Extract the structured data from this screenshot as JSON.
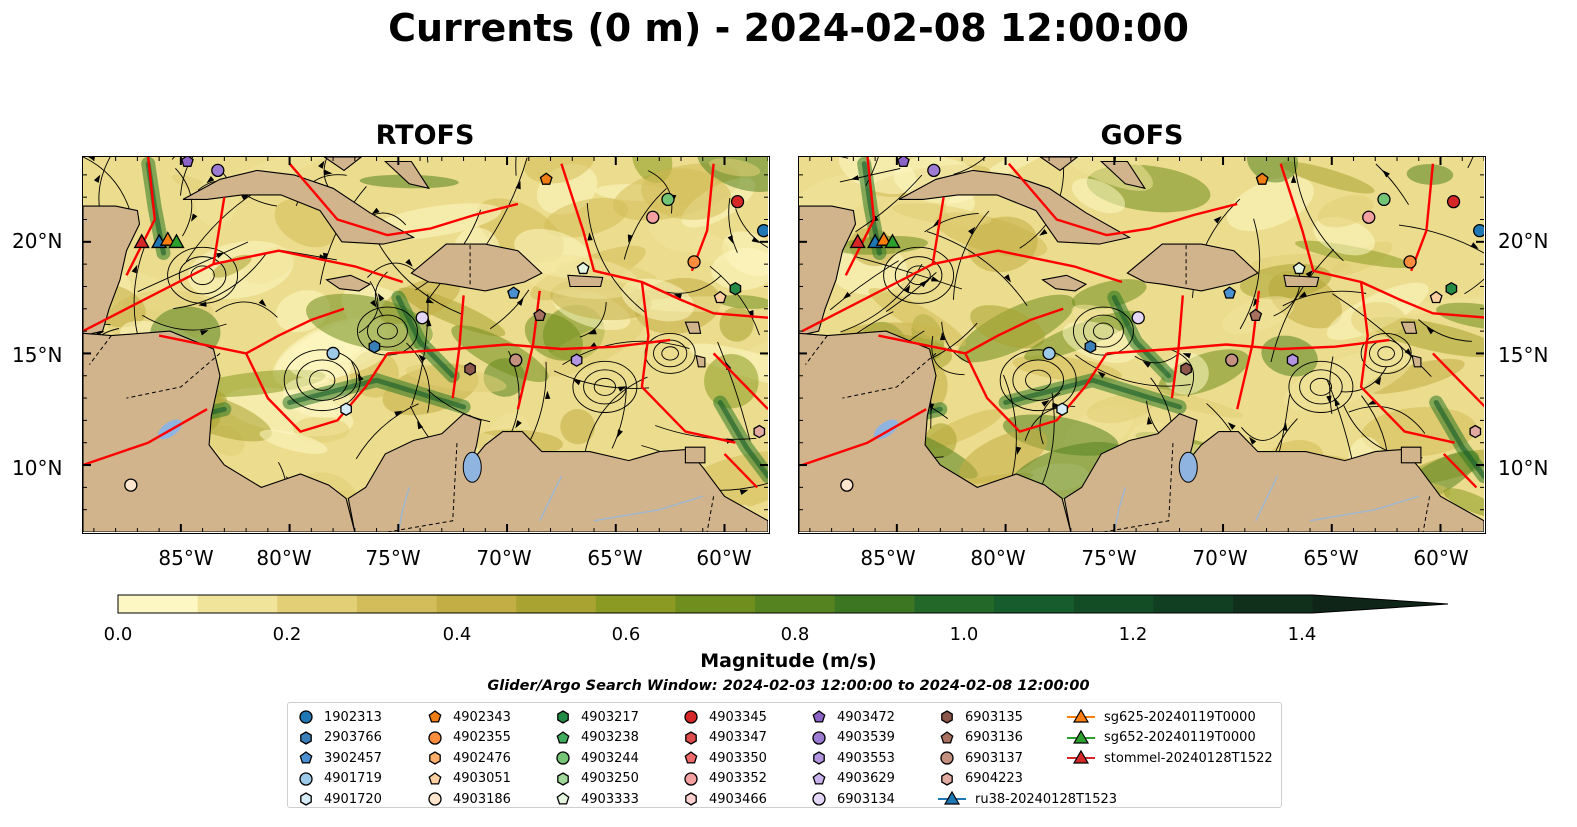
{
  "title": "Currents (0 m) - 2024-02-08 12:00:00",
  "panels": [
    {
      "title": "RTOFS"
    },
    {
      "title": "GOFS"
    }
  ],
  "axes": {
    "lat_labels": [
      "20°N",
      "15°N",
      "10°N"
    ],
    "lon_labels": [
      "85°W",
      "80°W",
      "75°W",
      "70°W",
      "65°W",
      "60°W"
    ]
  },
  "colorbar": {
    "title": "Magnitude (m/s)",
    "ticks": [
      "0.0",
      "0.2",
      "0.4",
      "0.6",
      "0.8",
      "1.0",
      "1.2",
      "1.4"
    ],
    "range": [
      0.0,
      1.5
    ],
    "colors": [
      "#fdf7c3",
      "#f0e39a",
      "#e2cf76",
      "#d3bd5a",
      "#c3ad45",
      "#a9a332",
      "#8b9a22",
      "#6f8e1d",
      "#558320",
      "#3d7622",
      "#236828",
      "#165c2c",
      "#124d26",
      "#113f22",
      "#11301c",
      "#0f2517"
    ]
  },
  "search_window": "Glider/Argo Search Window: 2024-02-03 12:00:00 to 2024-02-08 12:00:00",
  "legend": [
    {
      "label": "1902313",
      "marker": "circle",
      "color": "#1f77b4"
    },
    {
      "label": "2903766",
      "marker": "hexagon",
      "color": "#3a7fb8"
    },
    {
      "label": "3902457",
      "marker": "pentagon",
      "color": "#4a90d0"
    },
    {
      "label": "4901719",
      "marker": "circle",
      "color": "#9ecae9"
    },
    {
      "label": "4901720",
      "marker": "hexagon",
      "color": "#d6ecf9"
    },
    {
      "label": "4902343",
      "marker": "pentagon",
      "color": "#f07e14"
    },
    {
      "label": "4902355",
      "marker": "circle",
      "color": "#fd8d3c"
    },
    {
      "label": "4902476",
      "marker": "hexagon",
      "color": "#fdae6b"
    },
    {
      "label": "4903051",
      "marker": "pentagon",
      "color": "#fdd0a2"
    },
    {
      "label": "4903186",
      "marker": "circle",
      "color": "#fee6ce"
    },
    {
      "label": "4903217",
      "marker": "hexagon",
      "color": "#238b45"
    },
    {
      "label": "4903238",
      "marker": "pentagon",
      "color": "#41ab5d"
    },
    {
      "label": "4903244",
      "marker": "circle",
      "color": "#74c476"
    },
    {
      "label": "4903250",
      "marker": "hexagon",
      "color": "#a1d99b"
    },
    {
      "label": "4903333",
      "marker": "pentagon",
      "color": "#e5f5e0"
    },
    {
      "label": "4903345",
      "marker": "circle",
      "color": "#d62728"
    },
    {
      "label": "4903347",
      "marker": "hexagon",
      "color": "#de4b4b"
    },
    {
      "label": "4903350",
      "marker": "pentagon",
      "color": "#ef6a6a"
    },
    {
      "label": "4903352",
      "marker": "circle",
      "color": "#f4a0a0"
    },
    {
      "label": "4903466",
      "marker": "hexagon",
      "color": "#fcd0d0"
    },
    {
      "label": "4903472",
      "marker": "pentagon",
      "color": "#8c63c6"
    },
    {
      "label": "4903539",
      "marker": "circle",
      "color": "#9e7bd3"
    },
    {
      "label": "4903553",
      "marker": "hexagon",
      "color": "#b294e0"
    },
    {
      "label": "4903629",
      "marker": "pentagon",
      "color": "#c9b2ec"
    },
    {
      "label": "6903134",
      "marker": "circle",
      "color": "#e4d6f7"
    },
    {
      "label": "6903135",
      "marker": "hexagon",
      "color": "#8c564b"
    },
    {
      "label": "6903136",
      "marker": "pentagon",
      "color": "#a8705f"
    },
    {
      "label": "6903137",
      "marker": "circle",
      "color": "#c4907f"
    },
    {
      "label": "6904223",
      "marker": "hexagon",
      "color": "#e2aaa0"
    },
    {
      "label": "ru38-20240128T1523",
      "marker": "triangle-line",
      "color": "#1f77b4"
    },
    {
      "label": "sg625-20240119T0000",
      "marker": "triangle-line",
      "color": "#ff7f0e"
    },
    {
      "label": "sg652-20240119T0000",
      "marker": "triangle-line",
      "color": "#2ca02c"
    },
    {
      "label": "stommel-20240128T1522",
      "marker": "triangle-line",
      "color": "#d62728"
    }
  ],
  "map_colors": {
    "land": "#d2b48c",
    "boundary": "#ff0000",
    "lake": "#8fb4e0",
    "river": "#9fb6cf"
  },
  "platforms": [
    {
      "legend_index": 0,
      "lon": -58.2,
      "lat": 20.5
    },
    {
      "legend_index": 2,
      "lon": -69.7,
      "lat": 17.7
    },
    {
      "legend_index": 1,
      "lon": -76.1,
      "lat": 15.3
    },
    {
      "legend_index": 3,
      "lon": -78.0,
      "lat": 15.0
    },
    {
      "legend_index": 4,
      "lon": -77.4,
      "lat": 12.5
    },
    {
      "legend_index": 5,
      "lon": -68.2,
      "lat": 22.8
    },
    {
      "legend_index": 6,
      "lon": -61.4,
      "lat": 19.1
    },
    {
      "legend_index": 8,
      "lon": -60.2,
      "lat": 17.5
    },
    {
      "legend_index": 9,
      "lon": -87.3,
      "lat": 9.1
    },
    {
      "legend_index": 10,
      "lon": -59.5,
      "lat": 17.9
    },
    {
      "legend_index": 12,
      "lon": -62.6,
      "lat": 21.9
    },
    {
      "legend_index": 14,
      "lon": -66.5,
      "lat": 18.8
    },
    {
      "legend_index": 15,
      "lon": -59.4,
      "lat": 21.8
    },
    {
      "legend_index": 18,
      "lon": -63.3,
      "lat": 21.1
    },
    {
      "legend_index": 20,
      "lon": -84.7,
      "lat": 23.6
    },
    {
      "legend_index": 22,
      "lon": -66.8,
      "lat": 14.7
    },
    {
      "legend_index": 24,
      "lon": -73.9,
      "lat": 16.6
    },
    {
      "legend_index": 25,
      "lon": -71.7,
      "lat": 14.3
    },
    {
      "legend_index": 26,
      "lon": -68.5,
      "lat": 16.7
    },
    {
      "legend_index": 27,
      "lon": -69.6,
      "lat": 14.7
    },
    {
      "legend_index": 28,
      "lon": -58.4,
      "lat": 11.5
    },
    {
      "legend_index": 21,
      "lon": -83.3,
      "lat": 23.2
    }
  ],
  "gliders": [
    {
      "legend_index": 29,
      "lon": -86.0,
      "lat": 20.0
    },
    {
      "legend_index": 30,
      "lon": -85.6,
      "lat": 20.1
    },
    {
      "legend_index": 31,
      "lon": -85.2,
      "lat": 20.0
    },
    {
      "legend_index": 32,
      "lon": -86.8,
      "lat": 20.0
    }
  ]
}
